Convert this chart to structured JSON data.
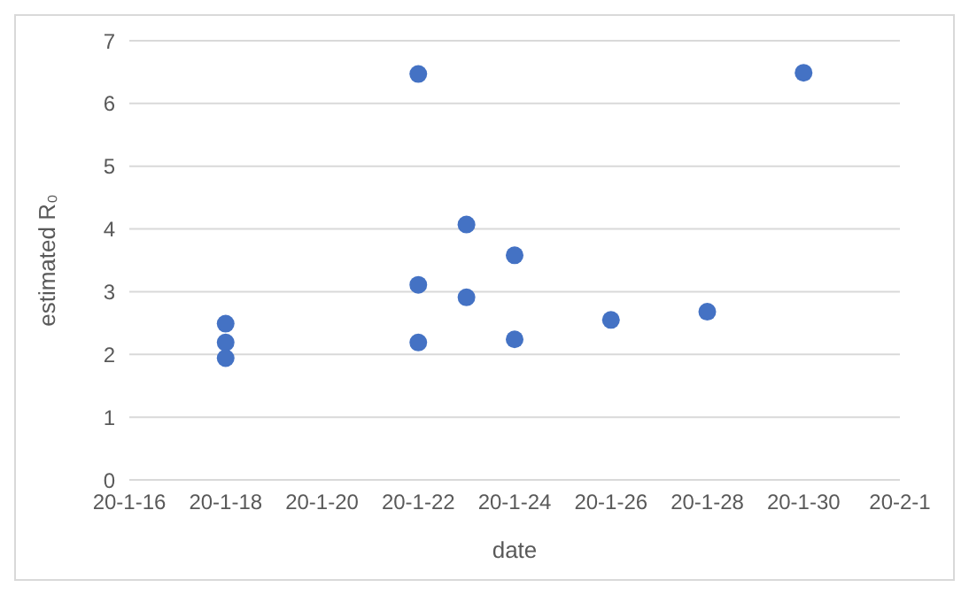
{
  "chart_data": {
    "type": "scatter",
    "xlabel": "date",
    "ylabel": "estimated R₀",
    "x": [
      "--01-18",
      "--01-18",
      "--01-18",
      "--01-22",
      "--01-22",
      "--01-22",
      "--01-23",
      "--01-23",
      "--01-24",
      "--01-24",
      "--01-26",
      "--01-28",
      "--01-30"
    ],
    "values": [
      2.49,
      2.19,
      1.94,
      6.47,
      3.11,
      2.19,
      4.07,
      2.91,
      3.58,
      2.24,
      2.55,
      2.68,
      6.49
    ],
    "color": "#4472c4",
    "marker": "circle",
    "xlim": [
      "--01-16",
      "--02-01"
    ],
    "xticks": [
      {
        "value": "--01-16",
        "label": "20-1-16"
      },
      {
        "value": "--01-18",
        "label": "20-1-18"
      },
      {
        "value": "--01-20",
        "label": "20-1-20"
      },
      {
        "value": "--01-22",
        "label": "20-1-22"
      },
      {
        "value": "--01-24",
        "label": "20-1-24"
      },
      {
        "value": "--01-26",
        "label": "20-1-26"
      },
      {
        "value": "--01-28",
        "label": "20-1-28"
      },
      {
        "value": "--01-30",
        "label": "20-1-30"
      },
      {
        "value": "--02-01",
        "label": "20-2-1"
      }
    ],
    "ylim": [
      0,
      7
    ],
    "yticks": [
      0,
      1,
      2,
      3,
      4,
      5,
      6,
      7
    ],
    "grid": "y",
    "legend": false
  }
}
